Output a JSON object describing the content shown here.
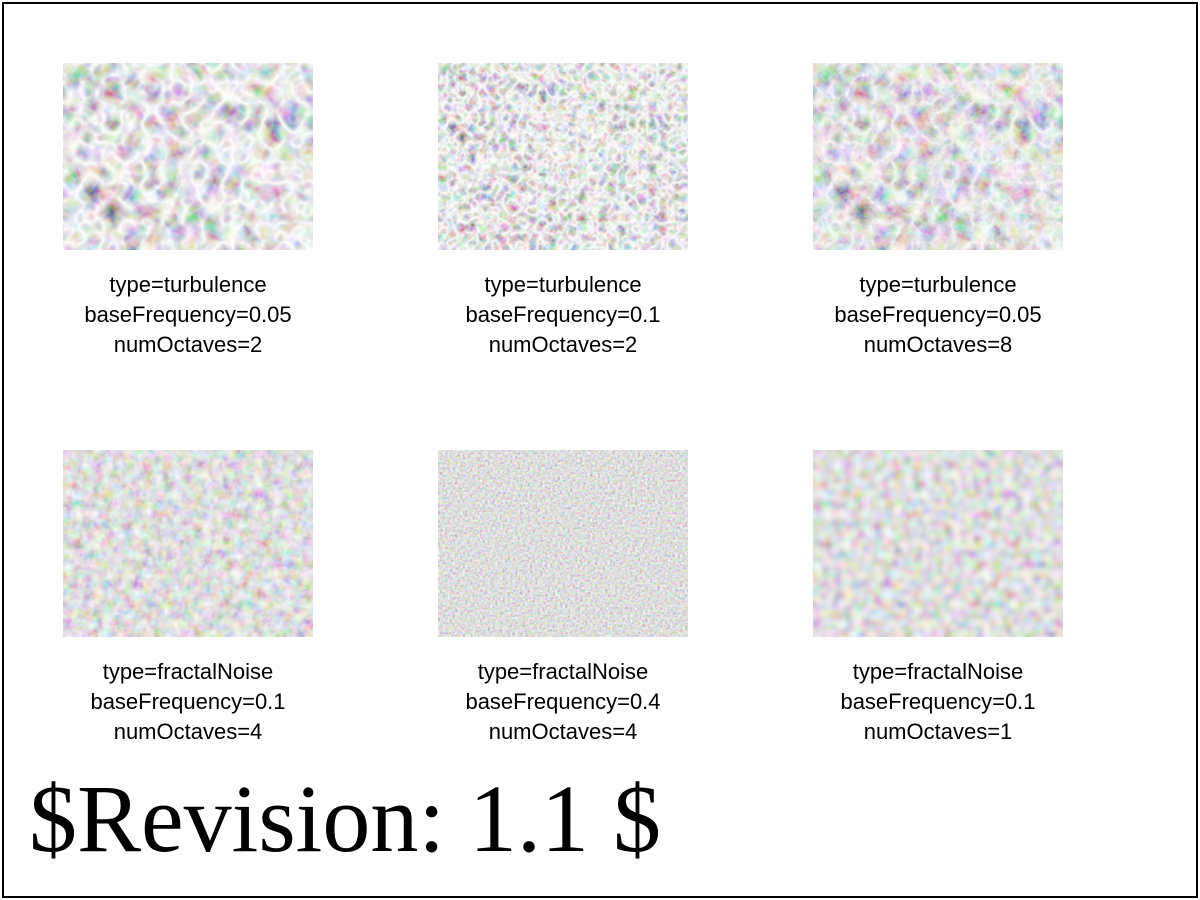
{
  "tiles": [
    {
      "type_text": "type=turbulence",
      "freq_text": "baseFrequency=0.05",
      "octaves_text": "numOctaves=2",
      "type": "turbulence",
      "baseFrequency": 0.05,
      "numOctaves": 2
    },
    {
      "type_text": "type=turbulence",
      "freq_text": "baseFrequency=0.1",
      "octaves_text": "numOctaves=2",
      "type": "turbulence",
      "baseFrequency": 0.1,
      "numOctaves": 2
    },
    {
      "type_text": "type=turbulence",
      "freq_text": "baseFrequency=0.05",
      "octaves_text": "numOctaves=8",
      "type": "turbulence",
      "baseFrequency": 0.05,
      "numOctaves": 8
    },
    {
      "type_text": "type=fractalNoise",
      "freq_text": "baseFrequency=0.1",
      "octaves_text": "numOctaves=4",
      "type": "fractalNoise",
      "baseFrequency": 0.1,
      "numOctaves": 4
    },
    {
      "type_text": "type=fractalNoise",
      "freq_text": "baseFrequency=0.4",
      "octaves_text": "numOctaves=4",
      "type": "fractalNoise",
      "baseFrequency": 0.4,
      "numOctaves": 4
    },
    {
      "type_text": "type=fractalNoise",
      "freq_text": "baseFrequency=0.1",
      "octaves_text": "numOctaves=1",
      "type": "fractalNoise",
      "baseFrequency": 0.1,
      "numOctaves": 1
    }
  ],
  "revision": "$Revision: 1.1 $"
}
